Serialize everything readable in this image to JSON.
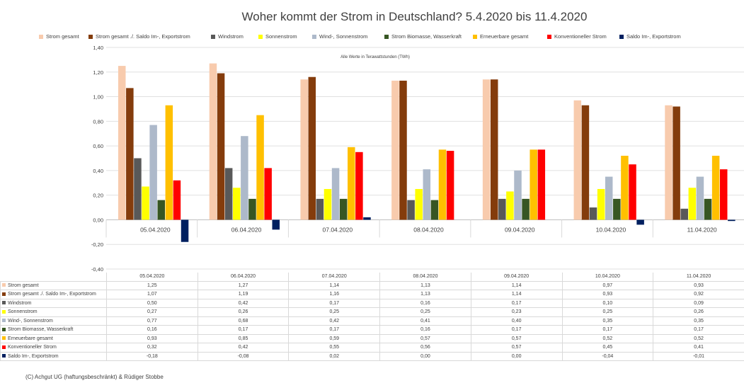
{
  "chart_data": {
    "type": "bar",
    "title": "Woher kommt der Strom in Deutschland? 5.4.2020 bis 11.4.2020",
    "subtitle": "Alle Werte in Terawattstunden (TWh)",
    "categories": [
      "05.04.2020",
      "06.04.2020",
      "07.04.2020",
      "08.04.2020",
      "09.04.2020",
      "10.04.2020",
      "11.04.2020"
    ],
    "ylim": [
      -0.4,
      1.4
    ],
    "yticks": [
      "-0,40",
      "-0,20",
      "0,00",
      "0,20",
      "0,40",
      "0,60",
      "0,80",
      "1,00",
      "1,20",
      "1,40"
    ],
    "ytick_values": [
      -0.4,
      -0.2,
      0,
      0.2,
      0.4,
      0.6,
      0.8,
      1.0,
      1.2,
      1.4
    ],
    "series": [
      {
        "name": "Strom gesamt",
        "color": "#f8cbad",
        "values": [
          1.25,
          1.27,
          1.14,
          1.13,
          1.14,
          0.97,
          0.93
        ],
        "labels": [
          "1,25",
          "1,27",
          "1,14",
          "1,13",
          "1,14",
          "0,97",
          "0,93"
        ]
      },
      {
        "name": "Strom gesamt ./. Saldo Im-, Exportstrom",
        "color": "#843c0c",
        "values": [
          1.07,
          1.19,
          1.16,
          1.13,
          1.14,
          0.93,
          0.92
        ],
        "labels": [
          "1,07",
          "1,19",
          "1,16",
          "1,13",
          "1,14",
          "0,93",
          "0,92"
        ]
      },
      {
        "name": "Windstrom",
        "color": "#595959",
        "values": [
          0.5,
          0.42,
          0.17,
          0.16,
          0.17,
          0.1,
          0.09
        ],
        "labels": [
          "0,50",
          "0,42",
          "0,17",
          "0,16",
          "0,17",
          "0,10",
          "0,09"
        ]
      },
      {
        "name": "Sonnenstrom",
        "color": "#ffff00",
        "values": [
          0.27,
          0.26,
          0.25,
          0.25,
          0.23,
          0.25,
          0.26
        ],
        "labels": [
          "0,27",
          "0,26",
          "0,25",
          "0,25",
          "0,23",
          "0,25",
          "0,26"
        ]
      },
      {
        "name": "Wind-, Sonnenstrom",
        "color": "#adb9ca",
        "values": [
          0.77,
          0.68,
          0.42,
          0.41,
          0.4,
          0.35,
          0.35
        ],
        "labels": [
          "0,77",
          "0,68",
          "0,42",
          "0,41",
          "0,40",
          "0,35",
          "0,35"
        ]
      },
      {
        "name": "Strom Biomasse, Wasserkraft",
        "color": "#375623",
        "values": [
          0.16,
          0.17,
          0.17,
          0.16,
          0.17,
          0.17,
          0.17
        ],
        "labels": [
          "0,16",
          "0,17",
          "0,17",
          "0,16",
          "0,17",
          "0,17",
          "0,17"
        ]
      },
      {
        "name": "Erneuerbare gesamt",
        "color": "#ffc000",
        "values": [
          0.93,
          0.85,
          0.59,
          0.57,
          0.57,
          0.52,
          0.52
        ],
        "labels": [
          "0,93",
          "0,85",
          "0,59",
          "0,57",
          "0,57",
          "0,52",
          "0,52"
        ]
      },
      {
        "name": "Konventioneller Strom",
        "color": "#ff0000",
        "values": [
          0.32,
          0.42,
          0.55,
          0.56,
          0.57,
          0.45,
          0.41
        ],
        "labels": [
          "0,32",
          "0,42",
          "0,55",
          "0,56",
          "0,57",
          "0,45",
          "0,41"
        ]
      },
      {
        "name": "Saldo Im-, Exportstrom",
        "color": "#002060",
        "values": [
          -0.18,
          -0.08,
          0.02,
          0.0,
          0.0,
          -0.04,
          -0.01
        ],
        "labels": [
          "-0,18",
          "-0,08",
          "0,02",
          "0,00",
          "0,00",
          "-0,04",
          "-0,01"
        ]
      }
    ]
  },
  "footer": {
    "copyright": "(C) Achgut UG (haftungsbeschränkt) & Rüdiger Stobbe"
  }
}
